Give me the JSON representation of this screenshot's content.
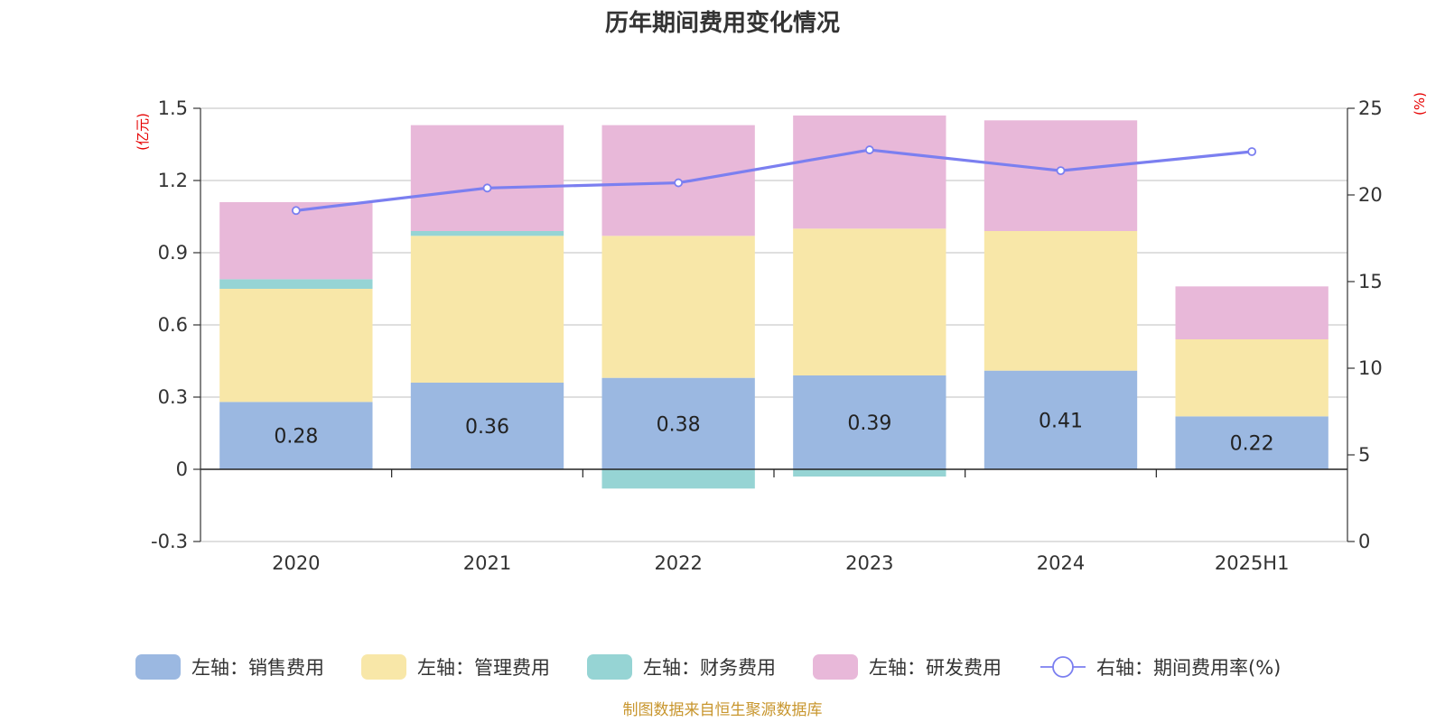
{
  "chart_data": {
    "type": "bar",
    "title": "历年期间费用变化情况",
    "stacked": true,
    "categories": [
      "2020",
      "2021",
      "2022",
      "2023",
      "2024",
      "2025H1"
    ],
    "y_left": {
      "unit": "(亿元)",
      "ylim": [
        -0.3,
        1.5
      ],
      "ticks": [
        -0.3,
        0,
        0.3,
        0.6,
        0.9,
        1.2,
        1.5
      ],
      "tick_labels": [
        "-0.3",
        "0",
        "0.3",
        "0.6",
        "0.9",
        "1.2",
        "1.5"
      ]
    },
    "y_right": {
      "unit": "(%)",
      "ylim": [
        0,
        25
      ],
      "ticks": [
        0,
        5,
        10,
        15,
        20,
        25
      ],
      "tick_labels": [
        "0",
        "5",
        "10",
        "15",
        "20",
        "25"
      ]
    },
    "series": [
      {
        "name": "左轴：销售费用",
        "axis": "left",
        "type": "bar",
        "color": "#9bb8e1",
        "values": [
          0.28,
          0.36,
          0.38,
          0.39,
          0.41,
          0.22
        ],
        "labels": [
          "0.28",
          "0.36",
          "0.38",
          "0.39",
          "0.41",
          "0.22"
        ]
      },
      {
        "name": "左轴：管理费用",
        "axis": "left",
        "type": "bar",
        "color": "#f8e7a8",
        "values": [
          0.47,
          0.61,
          0.59,
          0.61,
          0.58,
          0.32
        ]
      },
      {
        "name": "左轴：财务费用",
        "axis": "left",
        "type": "bar",
        "color": "#96d4d4",
        "values": [
          0.04,
          0.02,
          -0.08,
          -0.03,
          0.0,
          0.0
        ]
      },
      {
        "name": "左轴：研发费用",
        "axis": "left",
        "type": "bar",
        "color": "#e8b8d9",
        "values": [
          0.32,
          0.44,
          0.46,
          0.47,
          0.46,
          0.22
        ]
      },
      {
        "name": "右轴：期间费用率(%)",
        "axis": "right",
        "type": "line",
        "color": "#7b7ff0",
        "values": [
          19.1,
          20.4,
          20.7,
          22.6,
          21.4,
          22.5
        ]
      }
    ],
    "grid": true,
    "legend": "bottom"
  },
  "footer": {
    "source": "制图数据来自恒生聚源数据库"
  }
}
